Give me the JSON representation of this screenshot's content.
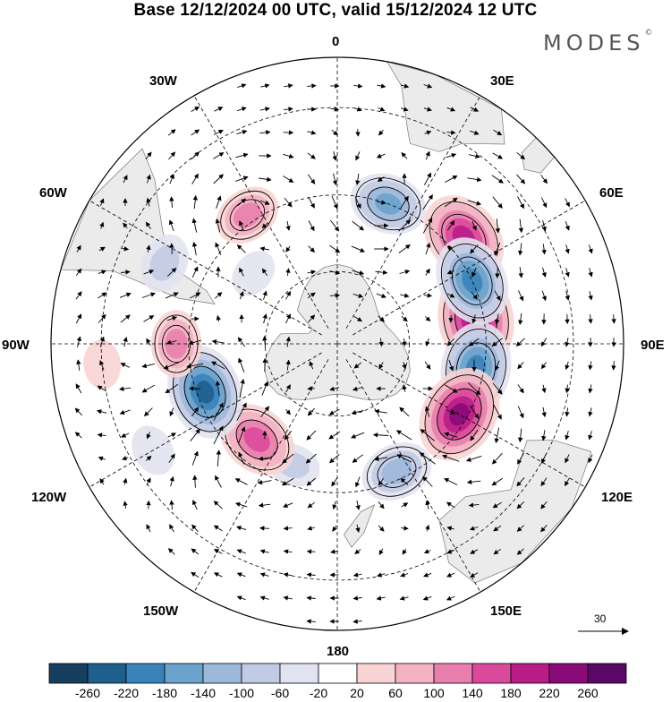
{
  "title": "Base 12/12/2024 00 UTC, valid 15/12/2024 12 UTC",
  "brand": "MODES",
  "brand_mark": "©",
  "longitude_labels": [
    "0",
    "30E",
    "60E",
    "90E",
    "120E",
    "150E",
    "180",
    "150W",
    "120W",
    "90W",
    "60W",
    "30W"
  ],
  "reference_vector": {
    "value": "30"
  },
  "colorbar": {
    "ticks": [
      "-260",
      "-220",
      "-180",
      "-140",
      "-100",
      "-60",
      "-20",
      "20",
      "60",
      "100",
      "140",
      "180",
      "220",
      "260"
    ],
    "colors": [
      "#163e5e",
      "#1f5f8e",
      "#3a83ba",
      "#6aa3cc",
      "#9db9da",
      "#c2cbe4",
      "#e2e3f0",
      "#ffffff",
      "#f9d4d4",
      "#f3b3c2",
      "#e97fae",
      "#da4a9c",
      "#b81d87",
      "#8a0a78",
      "#5a0866"
    ]
  },
  "map": {
    "projection": "south-polar-stereographic",
    "land_color": "#ebebeb",
    "anomalies": [
      {
        "lon": 80,
        "lat": -52,
        "value": 240
      },
      {
        "lon": 50,
        "lat": -46,
        "value": 210
      },
      {
        "lon": 65,
        "lat": -50,
        "value": -200
      },
      {
        "lon": 20,
        "lat": -50,
        "value": -150
      },
      {
        "lon": 100,
        "lat": -52,
        "value": -210
      },
      {
        "lon": 120,
        "lat": -52,
        "value": 230
      },
      {
        "lon": 155,
        "lat": -52,
        "value": -130
      },
      {
        "lon": -160,
        "lat": -55,
        "value": -60
      },
      {
        "lon": -140,
        "lat": -56,
        "value": 170
      },
      {
        "lon": -110,
        "lat": -52,
        "value": -220
      },
      {
        "lon": -90,
        "lat": -47,
        "value": 110
      },
      {
        "lon": -35,
        "lat": -48,
        "value": 110
      },
      {
        "lon": -65,
        "lat": -40,
        "value": -80
      },
      {
        "lon": -120,
        "lat": -35,
        "value": -50
      },
      {
        "lon": -50,
        "lat": -60,
        "value": -40
      },
      {
        "lon": -95,
        "lat": -30,
        "value": 40
      }
    ]
  }
}
